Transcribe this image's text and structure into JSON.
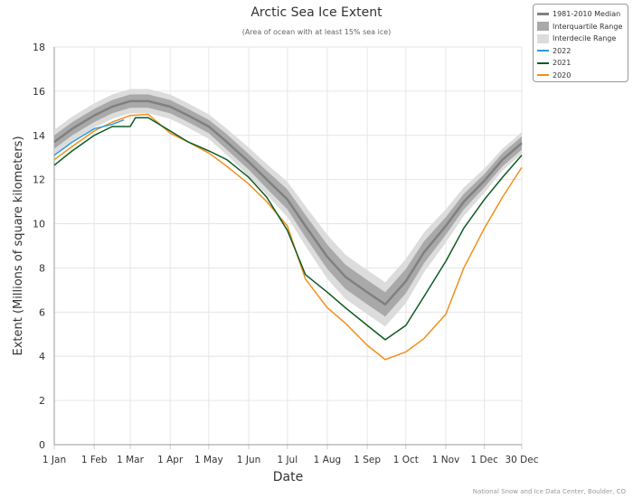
{
  "chart_data": {
    "type": "line",
    "title": "Arctic Sea Ice Extent",
    "subtitle": "(Area of ocean with at least 15% sea ice)",
    "xlabel": "Date",
    "ylabel": "Extent (Millions of square kilometers)",
    "ylim": [
      0,
      18
    ],
    "yticks": [
      0,
      2,
      4,
      6,
      8,
      10,
      12,
      14,
      16,
      18
    ],
    "xticks": [
      {
        "date": "01-01",
        "label": "1 Jan"
      },
      {
        "date": "02-01",
        "label": "1 Feb"
      },
      {
        "date": "03-01",
        "label": "1 Mar"
      },
      {
        "date": "04-01",
        "label": "1 Apr"
      },
      {
        "date": "05-01",
        "label": "1 May"
      },
      {
        "date": "06-01",
        "label": "1 Jun"
      },
      {
        "date": "07-01",
        "label": "1 Jul"
      },
      {
        "date": "08-01",
        "label": "1 Aug"
      },
      {
        "date": "09-01",
        "label": "1 Sep"
      },
      {
        "date": "10-01",
        "label": "1 Oct"
      },
      {
        "date": "11-01",
        "label": "1 Nov"
      },
      {
        "date": "12-01",
        "label": "1 Dec"
      },
      {
        "date": "12-30",
        "label": "30 Dec"
      }
    ],
    "grid": true,
    "legend_position": "top-right",
    "median": {
      "name": "1981-2010 Median",
      "color": "#808080",
      "dates": [
        "01-01",
        "01-15",
        "02-01",
        "02-15",
        "03-01",
        "03-15",
        "04-01",
        "04-15",
        "05-01",
        "05-15",
        "06-01",
        "06-15",
        "07-01",
        "07-15",
        "08-01",
        "08-15",
        "09-01",
        "09-15",
        "10-01",
        "10-15",
        "11-01",
        "11-15",
        "12-01",
        "12-15",
        "12-30"
      ],
      "values": [
        13.7,
        14.3,
        14.9,
        15.3,
        15.55,
        15.55,
        15.3,
        14.9,
        14.4,
        13.7,
        12.8,
        12.0,
        11.1,
        9.9,
        8.5,
        7.6,
        6.9,
        6.35,
        7.4,
        8.7,
        9.9,
        11.0,
        11.95,
        12.9,
        13.65
      ]
    },
    "interquartile": {
      "name": "Interquartile Range",
      "color": "#a9a9a9",
      "half_width": [
        0.3,
        0.3,
        0.3,
        0.3,
        0.3,
        0.3,
        0.3,
        0.3,
        0.3,
        0.35,
        0.35,
        0.4,
        0.45,
        0.5,
        0.55,
        0.55,
        0.55,
        0.55,
        0.55,
        0.5,
        0.4,
        0.35,
        0.3,
        0.3,
        0.3
      ]
    },
    "interdecile": {
      "name": "Interdecile Range",
      "color": "#dcdcdc",
      "half_width": [
        0.55,
        0.55,
        0.55,
        0.55,
        0.55,
        0.55,
        0.55,
        0.55,
        0.55,
        0.6,
        0.65,
        0.7,
        0.8,
        0.9,
        1.0,
        1.0,
        1.0,
        1.0,
        1.0,
        0.9,
        0.75,
        0.65,
        0.55,
        0.5,
        0.5
      ]
    },
    "series": [
      {
        "name": "2022",
        "color": "#2b9be0",
        "dates": [
          "01-01",
          "01-15",
          "02-01",
          "02-15",
          "02-24"
        ],
        "values": [
          13.1,
          13.7,
          14.3,
          14.5,
          14.7
        ]
      },
      {
        "name": "2021",
        "color": "#0d5a22",
        "dates": [
          "01-01",
          "01-15",
          "02-01",
          "02-15",
          "03-01",
          "03-05",
          "03-15",
          "04-01",
          "04-15",
          "05-01",
          "05-15",
          "06-01",
          "06-15",
          "07-01",
          "07-15",
          "08-01",
          "08-15",
          "09-01",
          "09-15",
          "10-01",
          "10-15",
          "11-01",
          "11-15",
          "12-01",
          "12-15",
          "12-30"
        ],
        "values": [
          12.65,
          13.3,
          14.0,
          14.4,
          14.4,
          14.8,
          14.8,
          14.2,
          13.7,
          13.3,
          12.9,
          12.1,
          11.2,
          9.7,
          7.7,
          6.9,
          6.2,
          5.4,
          4.75,
          5.4,
          6.7,
          8.3,
          9.8,
          11.1,
          12.1,
          13.1
        ]
      },
      {
        "name": "2020",
        "color": "#f0901c",
        "dates": [
          "01-01",
          "01-15",
          "02-01",
          "02-15",
          "03-01",
          "03-15",
          "04-01",
          "04-15",
          "05-01",
          "05-15",
          "06-01",
          "06-15",
          "07-01",
          "07-15",
          "08-01",
          "08-15",
          "09-01",
          "09-15",
          "10-01",
          "10-15",
          "11-01",
          "11-15",
          "12-01",
          "12-15",
          "12-30"
        ],
        "values": [
          12.9,
          13.5,
          14.2,
          14.6,
          14.9,
          14.95,
          14.1,
          13.7,
          13.2,
          12.6,
          11.8,
          11.0,
          9.9,
          7.5,
          6.2,
          5.5,
          4.5,
          3.85,
          4.2,
          4.8,
          5.9,
          8.0,
          9.8,
          11.2,
          12.55
        ]
      }
    ]
  },
  "credit": "National Snow and Ice Data Center, Boulder, CO"
}
